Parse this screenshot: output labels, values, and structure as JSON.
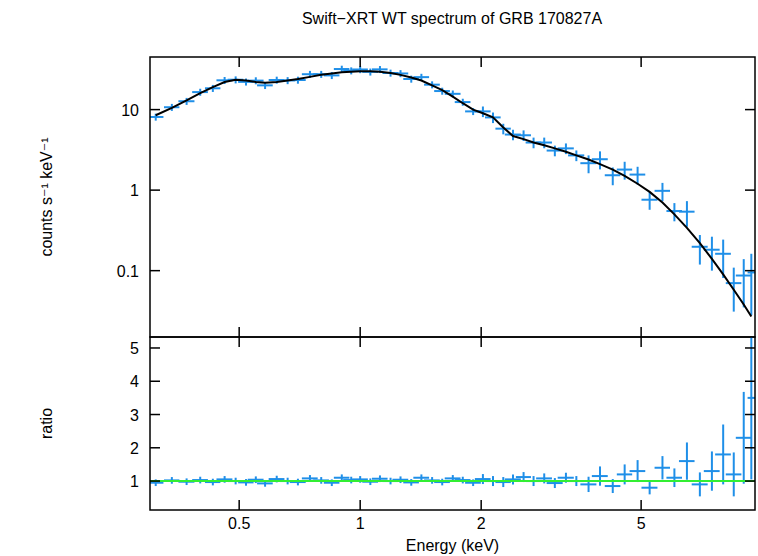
{
  "chart_data": [
    {
      "type": "scatter",
      "title": "Swift−XRT WT spectrum of GRB 170827A",
      "y_label": "counts s⁻¹ keV⁻¹",
      "x": [
        0.31,
        0.34,
        0.37,
        0.4,
        0.43,
        0.46,
        0.49,
        0.52,
        0.55,
        0.58,
        0.62,
        0.66,
        0.7,
        0.75,
        0.8,
        0.85,
        0.9,
        0.95,
        1.0,
        1.06,
        1.12,
        1.19,
        1.26,
        1.34,
        1.42,
        1.51,
        1.6,
        1.7,
        1.8,
        1.91,
        2.02,
        2.14,
        2.27,
        2.4,
        2.55,
        2.7,
        2.87,
        3.05,
        3.25,
        3.45,
        3.7,
        3.95,
        4.25,
        4.55,
        4.9,
        5.25,
        5.65,
        6.05,
        6.5,
        7.0,
        7.5,
        8.0,
        8.5,
        9.0,
        9.4
      ],
      "series": [
        {
          "type": "scatter",
          "color": "#1f8fe8",
          "values": [
            8.1,
            10.7,
            12.7,
            16.5,
            18.4,
            23.1,
            23.5,
            22.1,
            22.9,
            20.0,
            23.3,
            23,
            23.3,
            27.5,
            27.5,
            26.6,
            31.9,
            30.4,
            31.5,
            29.4,
            31.6,
            28.5,
            28.1,
            24,
            25.3,
            20.4,
            17.0,
            15.7,
            12.4,
            9.5,
            9.5,
            8,
            5.8,
            4.9,
            4.8,
            3.9,
            3.9,
            3.1,
            3.3,
            2.7,
            2.16,
            2.42,
            1.53,
            1.8,
            1.56,
            0.76,
            0.98,
            0.55,
            0.54,
            0.198,
            0.182,
            0.162,
            0.07,
            0.087,
            0.095
          ],
          "errors": [
            0.81,
            1.07,
            1.27,
            1.65,
            1.84,
            2.31,
            2.35,
            2.21,
            2.29,
            2.0,
            2.33,
            2.3,
            2.33,
            2.75,
            2.75,
            2.66,
            3.19,
            3.04,
            3.15,
            2.94,
            3.16,
            2.85,
            2.81,
            2.4,
            2.53,
            2.04,
            1.7,
            1.57,
            1.24,
            0.95,
            1.43,
            1.2,
            0.87,
            0.74,
            0.72,
            0.59,
            0.59,
            0.47,
            0.5,
            0.41,
            0.54,
            0.61,
            0.38,
            0.45,
            0.39,
            0.19,
            0.25,
            0.14,
            0.19,
            0.079,
            0.082,
            0.081,
            0.039,
            0.052,
            0.067
          ],
          "x_errors": [
            0.014,
            0.015,
            0.017,
            0.018,
            0.019,
            0.021,
            0.022,
            0.023,
            0.025,
            0.026,
            0.028,
            0.03,
            0.032,
            0.034,
            0.036,
            0.038,
            0.04,
            0.043,
            0.045,
            0.048,
            0.05,
            0.054,
            0.057,
            0.06,
            0.064,
            0.068,
            0.072,
            0.077,
            0.081,
            0.086,
            0.091,
            0.096,
            0.1,
            0.11,
            0.11,
            0.12,
            0.13,
            0.14,
            0.15,
            0.16,
            0.17,
            0.18,
            0.19,
            0.2,
            0.22,
            0.24,
            0.25,
            0.27,
            0.29,
            0.32,
            0.34,
            0.36,
            0.38,
            0.4,
            0.2
          ]
        },
        {
          "type": "line",
          "color": "#000000",
          "values": [
            8.5,
            10.5,
            13,
            16,
            19,
            22,
            23.5,
            23,
            22,
            21.5,
            22,
            23,
            24,
            25.5,
            27,
            28,
            29,
            29.5,
            30,
            30,
            29.5,
            28.5,
            27,
            25,
            23,
            20,
            17.5,
            14.5,
            12,
            10,
            9,
            8,
            6,
            4.7,
            4.3,
            3.9,
            3.6,
            3.3,
            3.0,
            2.7,
            2.4,
            2.1,
            1.8,
            1.5,
            1.2,
            0.95,
            0.7,
            0.5,
            0.34,
            0.22,
            0.14,
            0.09,
            0.058,
            0.038,
            0.027
          ]
        }
      ],
      "xlim": [
        0.3,
        9.6
      ],
      "ylim": [
        0.015,
        45
      ],
      "xticks": [
        0.5,
        1,
        2,
        5
      ],
      "yticks": [
        0.1,
        1,
        10
      ],
      "log": true,
      "tick_labels": "y"
    },
    {
      "type": "scatter",
      "x_label": "Energy (keV)",
      "y_label": "ratio",
      "x": [
        0.31,
        0.34,
        0.37,
        0.4,
        0.43,
        0.46,
        0.49,
        0.52,
        0.55,
        0.58,
        0.62,
        0.66,
        0.7,
        0.75,
        0.8,
        0.85,
        0.9,
        0.95,
        1.0,
        1.06,
        1.12,
        1.19,
        1.26,
        1.34,
        1.42,
        1.51,
        1.6,
        1.7,
        1.8,
        1.91,
        2.02,
        2.14,
        2.27,
        2.4,
        2.55,
        2.7,
        2.87,
        3.05,
        3.25,
        3.45,
        3.7,
        3.95,
        4.25,
        4.55,
        4.9,
        5.25,
        5.65,
        6.05,
        6.5,
        7.0,
        7.5,
        8.0,
        8.5,
        9.0,
        9.4
      ],
      "series": [
        {
          "type": "scatter",
          "color": "#1f8fe8",
          "values": [
            0.95,
            1.02,
            0.98,
            1.03,
            0.97,
            1.05,
            1.0,
            0.96,
            1.04,
            0.93,
            1.06,
            1.0,
            0.97,
            1.08,
            1.02,
            0.95,
            1.1,
            1.03,
            1.05,
            0.98,
            1.07,
            1.0,
            1.04,
            0.96,
            1.1,
            1.02,
            0.97,
            1.08,
            1.03,
            0.95,
            1.06,
            1.0,
            0.97,
            1.05,
            1.12,
            1.0,
            1.08,
            0.94,
            1.1,
            1.0,
            0.9,
            1.15,
            0.85,
            1.2,
            1.3,
            0.8,
            1.4,
            1.1,
            1.6,
            0.9,
            1.3,
            1.8,
            1.2,
            2.3,
            3.5
          ],
          "errors": [
            0.1,
            0.1,
            0.1,
            0.1,
            0.1,
            0.1,
            0.1,
            0.1,
            0.1,
            0.1,
            0.1,
            0.1,
            0.1,
            0.1,
            0.1,
            0.1,
            0.1,
            0.1,
            0.1,
            0.1,
            0.1,
            0.1,
            0.1,
            0.1,
            0.1,
            0.1,
            0.1,
            0.1,
            0.1,
            0.1,
            0.15,
            0.15,
            0.15,
            0.15,
            0.15,
            0.15,
            0.15,
            0.15,
            0.15,
            0.15,
            0.23,
            0.29,
            0.21,
            0.3,
            0.33,
            0.2,
            0.35,
            0.28,
            0.56,
            0.36,
            0.59,
            0.9,
            0.66,
            1.38,
            2.45
          ],
          "x_errors": [
            0.014,
            0.015,
            0.017,
            0.018,
            0.019,
            0.021,
            0.022,
            0.023,
            0.025,
            0.026,
            0.028,
            0.03,
            0.032,
            0.034,
            0.036,
            0.038,
            0.04,
            0.043,
            0.045,
            0.048,
            0.05,
            0.054,
            0.057,
            0.06,
            0.064,
            0.068,
            0.072,
            0.077,
            0.081,
            0.086,
            0.091,
            0.096,
            0.1,
            0.11,
            0.11,
            0.12,
            0.13,
            0.14,
            0.15,
            0.16,
            0.17,
            0.18,
            0.19,
            0.2,
            0.22,
            0.24,
            0.25,
            0.27,
            0.29,
            0.32,
            0.34,
            0.36,
            0.38,
            0.4,
            0.2
          ]
        },
        {
          "type": "line",
          "color": "#33ee33",
          "x": [
            0.3,
            9.6
          ],
          "values": [
            1,
            1
          ]
        }
      ],
      "xlim": [
        0.3,
        9.6
      ],
      "ylim": [
        0.13,
        5.33
      ],
      "xticks": [
        0.5,
        1,
        2,
        5
      ],
      "yticks": [
        1,
        2,
        3,
        4,
        5
      ],
      "log": "x"
    }
  ]
}
